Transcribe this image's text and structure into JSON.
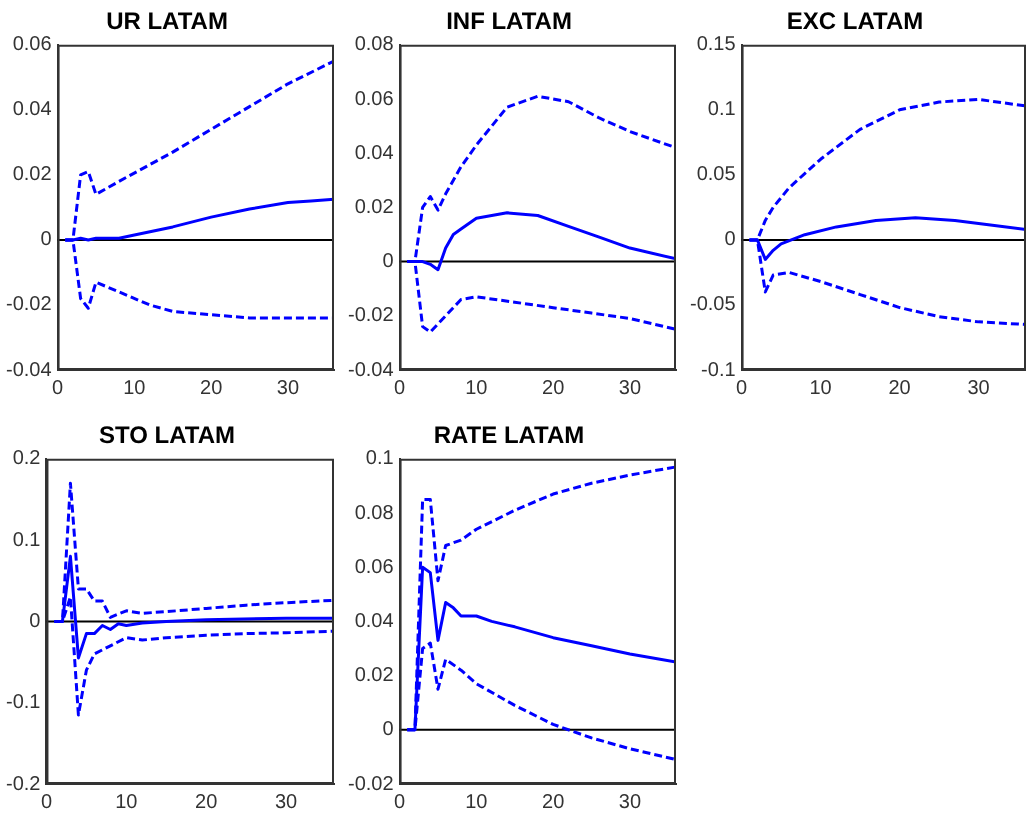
{
  "chart_data": [
    {
      "type": "line",
      "title": "UR LATAM",
      "xlim": [
        0,
        36
      ],
      "xticks": [
        0,
        10,
        20,
        30
      ],
      "ylim": [
        -0.04,
        0.06
      ],
      "yticks": [
        -0.04,
        -0.02,
        0,
        0.02,
        0.04,
        0.06
      ],
      "ref_lines": [
        {
          "axis": "y",
          "value": 0,
          "color": "#000000"
        }
      ],
      "series": [
        {
          "color": "#0000ff",
          "line_style": "solid",
          "x": [
            1,
            2,
            3,
            4,
            5,
            8,
            10,
            15,
            20,
            25,
            30,
            33,
            36
          ],
          "values": [
            0,
            0,
            0.0005,
            0,
            0.0005,
            0.0005,
            0.0015,
            0.004,
            0.007,
            0.0095,
            0.0115,
            0.012,
            0.0125
          ]
        },
        {
          "color": "#0000ff",
          "line_style": "dashed",
          "x": [
            1,
            2,
            3,
            4,
            5,
            8,
            15,
            20,
            25,
            30,
            36
          ],
          "values": [
            0,
            0,
            0.02,
            0.021,
            0.014,
            0.018,
            0.027,
            0.034,
            0.041,
            0.048,
            0.055
          ]
        },
        {
          "color": "#0000ff",
          "line_style": "dashed",
          "x": [
            1,
            2,
            3,
            4,
            5,
            8,
            12,
            15,
            20,
            25,
            30,
            36
          ],
          "values": [
            0,
            0,
            -0.018,
            -0.021,
            -0.013,
            -0.016,
            -0.02,
            -0.022,
            -0.023,
            -0.024,
            -0.024,
            -0.024
          ]
        }
      ]
    },
    {
      "type": "line",
      "title": "INF LATAM",
      "xlim": [
        0,
        36
      ],
      "xticks": [
        0,
        10,
        20,
        30
      ],
      "ylim": [
        -0.04,
        0.08
      ],
      "yticks": [
        -0.04,
        -0.02,
        0,
        0.02,
        0.04,
        0.06,
        0.08
      ],
      "ref_lines": [
        {
          "axis": "y",
          "value": 0,
          "color": "#000000"
        }
      ],
      "series": [
        {
          "color": "#0000ff",
          "line_style": "solid",
          "x": [
            1,
            3,
            4,
            5,
            6,
            7,
            8,
            10,
            14,
            18,
            22,
            26,
            30,
            36
          ],
          "values": [
            0,
            0,
            -0.001,
            -0.003,
            0.005,
            0.01,
            0.012,
            0.016,
            0.018,
            0.017,
            0.013,
            0.009,
            0.005,
            0.001
          ]
        },
        {
          "color": "#0000ff",
          "line_style": "dashed",
          "x": [
            1,
            2,
            3,
            4,
            5,
            6,
            8,
            10,
            14,
            18,
            22,
            26,
            30,
            36
          ],
          "values": [
            0,
            0,
            0.02,
            0.024,
            0.019,
            0.025,
            0.035,
            0.043,
            0.057,
            0.061,
            0.059,
            0.053,
            0.048,
            0.042
          ]
        },
        {
          "color": "#0000ff",
          "line_style": "dashed",
          "x": [
            1,
            2,
            3,
            4,
            6,
            8,
            10,
            15,
            20,
            25,
            30,
            36
          ],
          "values": [
            0,
            0,
            -0.024,
            -0.026,
            -0.02,
            -0.014,
            -0.013,
            -0.015,
            -0.017,
            -0.019,
            -0.021,
            -0.025
          ]
        }
      ]
    },
    {
      "type": "line",
      "title": "EXC LATAM",
      "xlim": [
        0,
        36
      ],
      "xticks": [
        0,
        10,
        20,
        30
      ],
      "ylim": [
        -0.1,
        0.15
      ],
      "yticks": [
        -0.1,
        -0.05,
        0,
        0.05,
        0.1,
        0.15
      ],
      "ref_lines": [
        {
          "axis": "y",
          "value": 0,
          "color": "#000000"
        }
      ],
      "series": [
        {
          "color": "#0000ff",
          "line_style": "solid",
          "x": [
            1,
            2,
            3,
            4,
            5,
            8,
            12,
            17,
            22,
            27,
            32,
            36
          ],
          "values": [
            0,
            0,
            -0.015,
            -0.008,
            -0.003,
            0.004,
            0.01,
            0.015,
            0.017,
            0.015,
            0.011,
            0.008
          ]
        },
        {
          "color": "#0000ff",
          "line_style": "dashed",
          "x": [
            1,
            2,
            3,
            4,
            6,
            10,
            15,
            20,
            25,
            30,
            36
          ],
          "values": [
            0,
            0,
            0.015,
            0.025,
            0.04,
            0.062,
            0.085,
            0.1,
            0.106,
            0.108,
            0.103
          ]
        },
        {
          "color": "#0000ff",
          "line_style": "dashed",
          "x": [
            1,
            2,
            3,
            4,
            6,
            10,
            15,
            20,
            25,
            30,
            36
          ],
          "values": [
            0,
            0,
            -0.04,
            -0.027,
            -0.025,
            -0.032,
            -0.042,
            -0.052,
            -0.059,
            -0.063,
            -0.065
          ]
        }
      ]
    },
    {
      "type": "line",
      "title": "STO LATAM",
      "xlim": [
        0,
        36
      ],
      "xticks": [
        0,
        10,
        20,
        30
      ],
      "ylim": [
        -0.2,
        0.2
      ],
      "yticks": [
        -0.2,
        -0.1,
        0,
        0.1,
        0.2
      ],
      "ref_lines": [
        {
          "axis": "y",
          "value": 0,
          "color": "#000000"
        }
      ],
      "series": [
        {
          "color": "#0000ff",
          "line_style": "solid",
          "x": [
            1,
            2,
            3,
            4,
            5,
            6,
            7,
            8,
            9,
            10,
            12,
            15,
            20,
            30,
            36
          ],
          "values": [
            0,
            0,
            0.08,
            -0.045,
            -0.015,
            -0.015,
            -0.005,
            -0.01,
            -0.003,
            -0.005,
            -0.002,
            0,
            0.002,
            0.004,
            0.004
          ]
        },
        {
          "color": "#0000ff",
          "line_style": "dashed",
          "x": [
            1,
            2,
            3,
            4,
            5,
            6,
            7,
            8,
            10,
            12,
            15,
            20,
            25,
            30,
            36
          ],
          "values": [
            0,
            0,
            0.17,
            0.04,
            0.04,
            0.025,
            0.025,
            0.005,
            0.013,
            0.01,
            0.012,
            0.016,
            0.02,
            0.023,
            0.026
          ]
        },
        {
          "color": "#0000ff",
          "line_style": "dashed",
          "x": [
            1,
            2,
            3,
            4,
            5,
            6,
            8,
            10,
            12,
            15,
            20,
            25,
            30,
            36
          ],
          "values": [
            0,
            0,
            0.03,
            -0.115,
            -0.06,
            -0.04,
            -0.03,
            -0.02,
            -0.023,
            -0.02,
            -0.017,
            -0.015,
            -0.014,
            -0.012
          ]
        }
      ]
    },
    {
      "type": "line",
      "title": "RATE LATAM",
      "xlim": [
        0,
        36
      ],
      "xticks": [
        0,
        10,
        20,
        30
      ],
      "ylim": [
        -0.02,
        0.1
      ],
      "yticks": [
        -0.02,
        0,
        0.02,
        0.04,
        0.06,
        0.08,
        0.1
      ],
      "ref_lines": [
        {
          "axis": "y",
          "value": 0,
          "color": "#000000"
        }
      ],
      "series": [
        {
          "color": "#0000ff",
          "line_style": "solid",
          "x": [
            1,
            2,
            3,
            4,
            5,
            6,
            7,
            8,
            10,
            12,
            15,
            20,
            25,
            30,
            36
          ],
          "values": [
            0,
            0,
            0.06,
            0.058,
            0.033,
            0.047,
            0.045,
            0.042,
            0.042,
            0.04,
            0.038,
            0.034,
            0.031,
            0.028,
            0.025
          ]
        },
        {
          "color": "#0000ff",
          "line_style": "dashed",
          "x": [
            1,
            2,
            3,
            4,
            5,
            6,
            8,
            10,
            15,
            20,
            25,
            30,
            36
          ],
          "values": [
            0,
            0,
            0.085,
            0.085,
            0.055,
            0.068,
            0.07,
            0.074,
            0.081,
            0.087,
            0.091,
            0.094,
            0.097
          ]
        },
        {
          "color": "#0000ff",
          "line_style": "dashed",
          "x": [
            1,
            2,
            3,
            4,
            5,
            6,
            8,
            10,
            15,
            20,
            25,
            30,
            36
          ],
          "values": [
            0,
            0,
            0.03,
            0.032,
            0.015,
            0.026,
            0.022,
            0.017,
            0.009,
            0.002,
            -0.003,
            -0.007,
            -0.011
          ]
        }
      ]
    }
  ]
}
